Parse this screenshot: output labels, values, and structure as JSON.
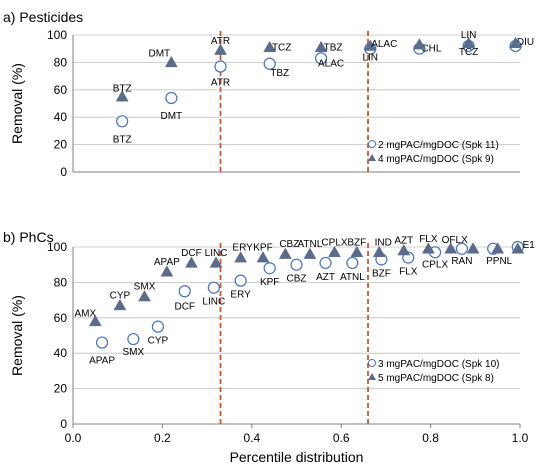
{
  "chart_data": [
    {
      "type": "scatter",
      "title": "a) Pesticides",
      "xlabel": "",
      "ylabel": "Removal (%)",
      "xlim": [
        0,
        1
      ],
      "ylim": [
        0,
        100
      ],
      "yticks": [
        "0",
        "20",
        "40",
        "60",
        "80",
        "100"
      ],
      "grid": "horizontal",
      "vlines": [
        0.33,
        0.66
      ],
      "vline_color": "#d2552a",
      "legend_position": "right",
      "series": [
        {
          "name": "2 mgPAC/mgDOC (Spk 11)",
          "marker": "circle",
          "color": "#4472c4",
          "points": [
            {
              "x": 0.11,
              "y": 37,
              "label": "BTZ"
            },
            {
              "x": 0.22,
              "y": 54,
              "label": "DMT"
            },
            {
              "x": 0.33,
              "y": 77,
              "label": "ATR"
            },
            {
              "x": 0.44,
              "y": 79,
              "label": "TBZ"
            },
            {
              "x": 0.555,
              "y": 83,
              "label": "ALAC"
            },
            {
              "x": 0.665,
              "y": 90,
              "label": "LIN"
            },
            {
              "x": 0.775,
              "y": 90,
              "label": "CHL"
            },
            {
              "x": 0.885,
              "y": 92,
              "label": "TCZ"
            },
            {
              "x": 0.99,
              "y": 92,
              "label": "DIU"
            }
          ]
        },
        {
          "name": "4 mgPAC/mgDOC (Spk 9)",
          "marker": "triangle",
          "color": "#5a6b8c",
          "points": [
            {
              "x": 0.11,
              "y": 55,
              "label": "BTZ"
            },
            {
              "x": 0.22,
              "y": 80,
              "label": "DMT"
            },
            {
              "x": 0.33,
              "y": 89,
              "label": "ATR"
            },
            {
              "x": 0.44,
              "y": 91,
              "label": "TCZ"
            },
            {
              "x": 0.555,
              "y": 91,
              "label": "TBZ"
            },
            {
              "x": 0.665,
              "y": 92,
              "label": "ALAC"
            },
            {
              "x": 0.775,
              "y": 93,
              "label": ""
            },
            {
              "x": 0.885,
              "y": 94,
              "label": "LIN"
            },
            {
              "x": 0.99,
              "y": 94,
              "label": ""
            }
          ]
        }
      ]
    },
    {
      "type": "scatter",
      "title": "b) PhCs",
      "xlabel": "Percentile distribution",
      "ylabel": "Removal (%)",
      "xlim": [
        0,
        1
      ],
      "ylim": [
        0,
        100
      ],
      "xticks": [
        "0.0",
        "0.2",
        "0.4",
        "0.6",
        "0.8",
        "1.0"
      ],
      "yticks": [
        "0",
        "20",
        "40",
        "60",
        "80",
        "100"
      ],
      "grid": "horizontal",
      "vlines": [
        0.33,
        0.66
      ],
      "vline_color": "#d2552a",
      "legend_position": "right",
      "series": [
        {
          "name": "3 mgPAC/mgDOC (Spk 10)",
          "marker": "circle",
          "color": "#4472c4",
          "points": [
            {
              "x": 0.065,
              "y": 46,
              "label": "APAP"
            },
            {
              "x": 0.135,
              "y": 48,
              "label": "SMX"
            },
            {
              "x": 0.19,
              "y": 55,
              "label": "CYP"
            },
            {
              "x": 0.25,
              "y": 75,
              "label": "DCF"
            },
            {
              "x": 0.315,
              "y": 77,
              "label": "LINC"
            },
            {
              "x": 0.375,
              "y": 81,
              "label": "ERY"
            },
            {
              "x": 0.44,
              "y": 88,
              "label": "KPF"
            },
            {
              "x": 0.5,
              "y": 90,
              "label": "CBZ"
            },
            {
              "x": 0.565,
              "y": 91,
              "label": "AZT"
            },
            {
              "x": 0.625,
              "y": 91,
              "label": "ATNL"
            },
            {
              "x": 0.69,
              "y": 93,
              "label": "BZF"
            },
            {
              "x": 0.75,
              "y": 94,
              "label": "FLX"
            },
            {
              "x": 0.81,
              "y": 97,
              "label": "CPLX"
            },
            {
              "x": 0.87,
              "y": 99,
              "label": "RAN"
            },
            {
              "x": 0.94,
              "y": 99,
              "label": "PPNL"
            },
            {
              "x": 0.995,
              "y": 100,
              "label": ""
            }
          ]
        },
        {
          "name": "5 mgPAC/mgDOC (Spk 8)",
          "marker": "triangle",
          "color": "#5a6b8c",
          "points": [
            {
              "x": 0.05,
              "y": 58,
              "label": "AMX"
            },
            {
              "x": 0.105,
              "y": 67,
              "label": "CYP"
            },
            {
              "x": 0.16,
              "y": 72,
              "label": "SMX"
            },
            {
              "x": 0.21,
              "y": 86,
              "label": "APAP"
            },
            {
              "x": 0.265,
              "y": 91,
              "label": "DCF"
            },
            {
              "x": 0.32,
              "y": 91,
              "label": "LINC"
            },
            {
              "x": 0.375,
              "y": 94,
              "label": "ERY"
            },
            {
              "x": 0.425,
              "y": 94,
              "label": "KPF"
            },
            {
              "x": 0.475,
              "y": 96,
              "label": "CBZ"
            },
            {
              "x": 0.53,
              "y": 96,
              "label": "ATNL"
            },
            {
              "x": 0.585,
              "y": 97,
              "label": "CPLX"
            },
            {
              "x": 0.635,
              "y": 97,
              "label": "BZF"
            },
            {
              "x": 0.685,
              "y": 97,
              "label": "IND"
            },
            {
              "x": 0.74,
              "y": 98,
              "label": "AZT"
            },
            {
              "x": 0.795,
              "y": 99,
              "label": "FLX"
            },
            {
              "x": 0.845,
              "y": 99,
              "label": "OFLX"
            },
            {
              "x": 0.895,
              "y": 99,
              "label": ""
            },
            {
              "x": 0.95,
              "y": 99,
              "label": ""
            },
            {
              "x": 0.995,
              "y": 99,
              "label": "E1"
            }
          ]
        }
      ]
    }
  ]
}
